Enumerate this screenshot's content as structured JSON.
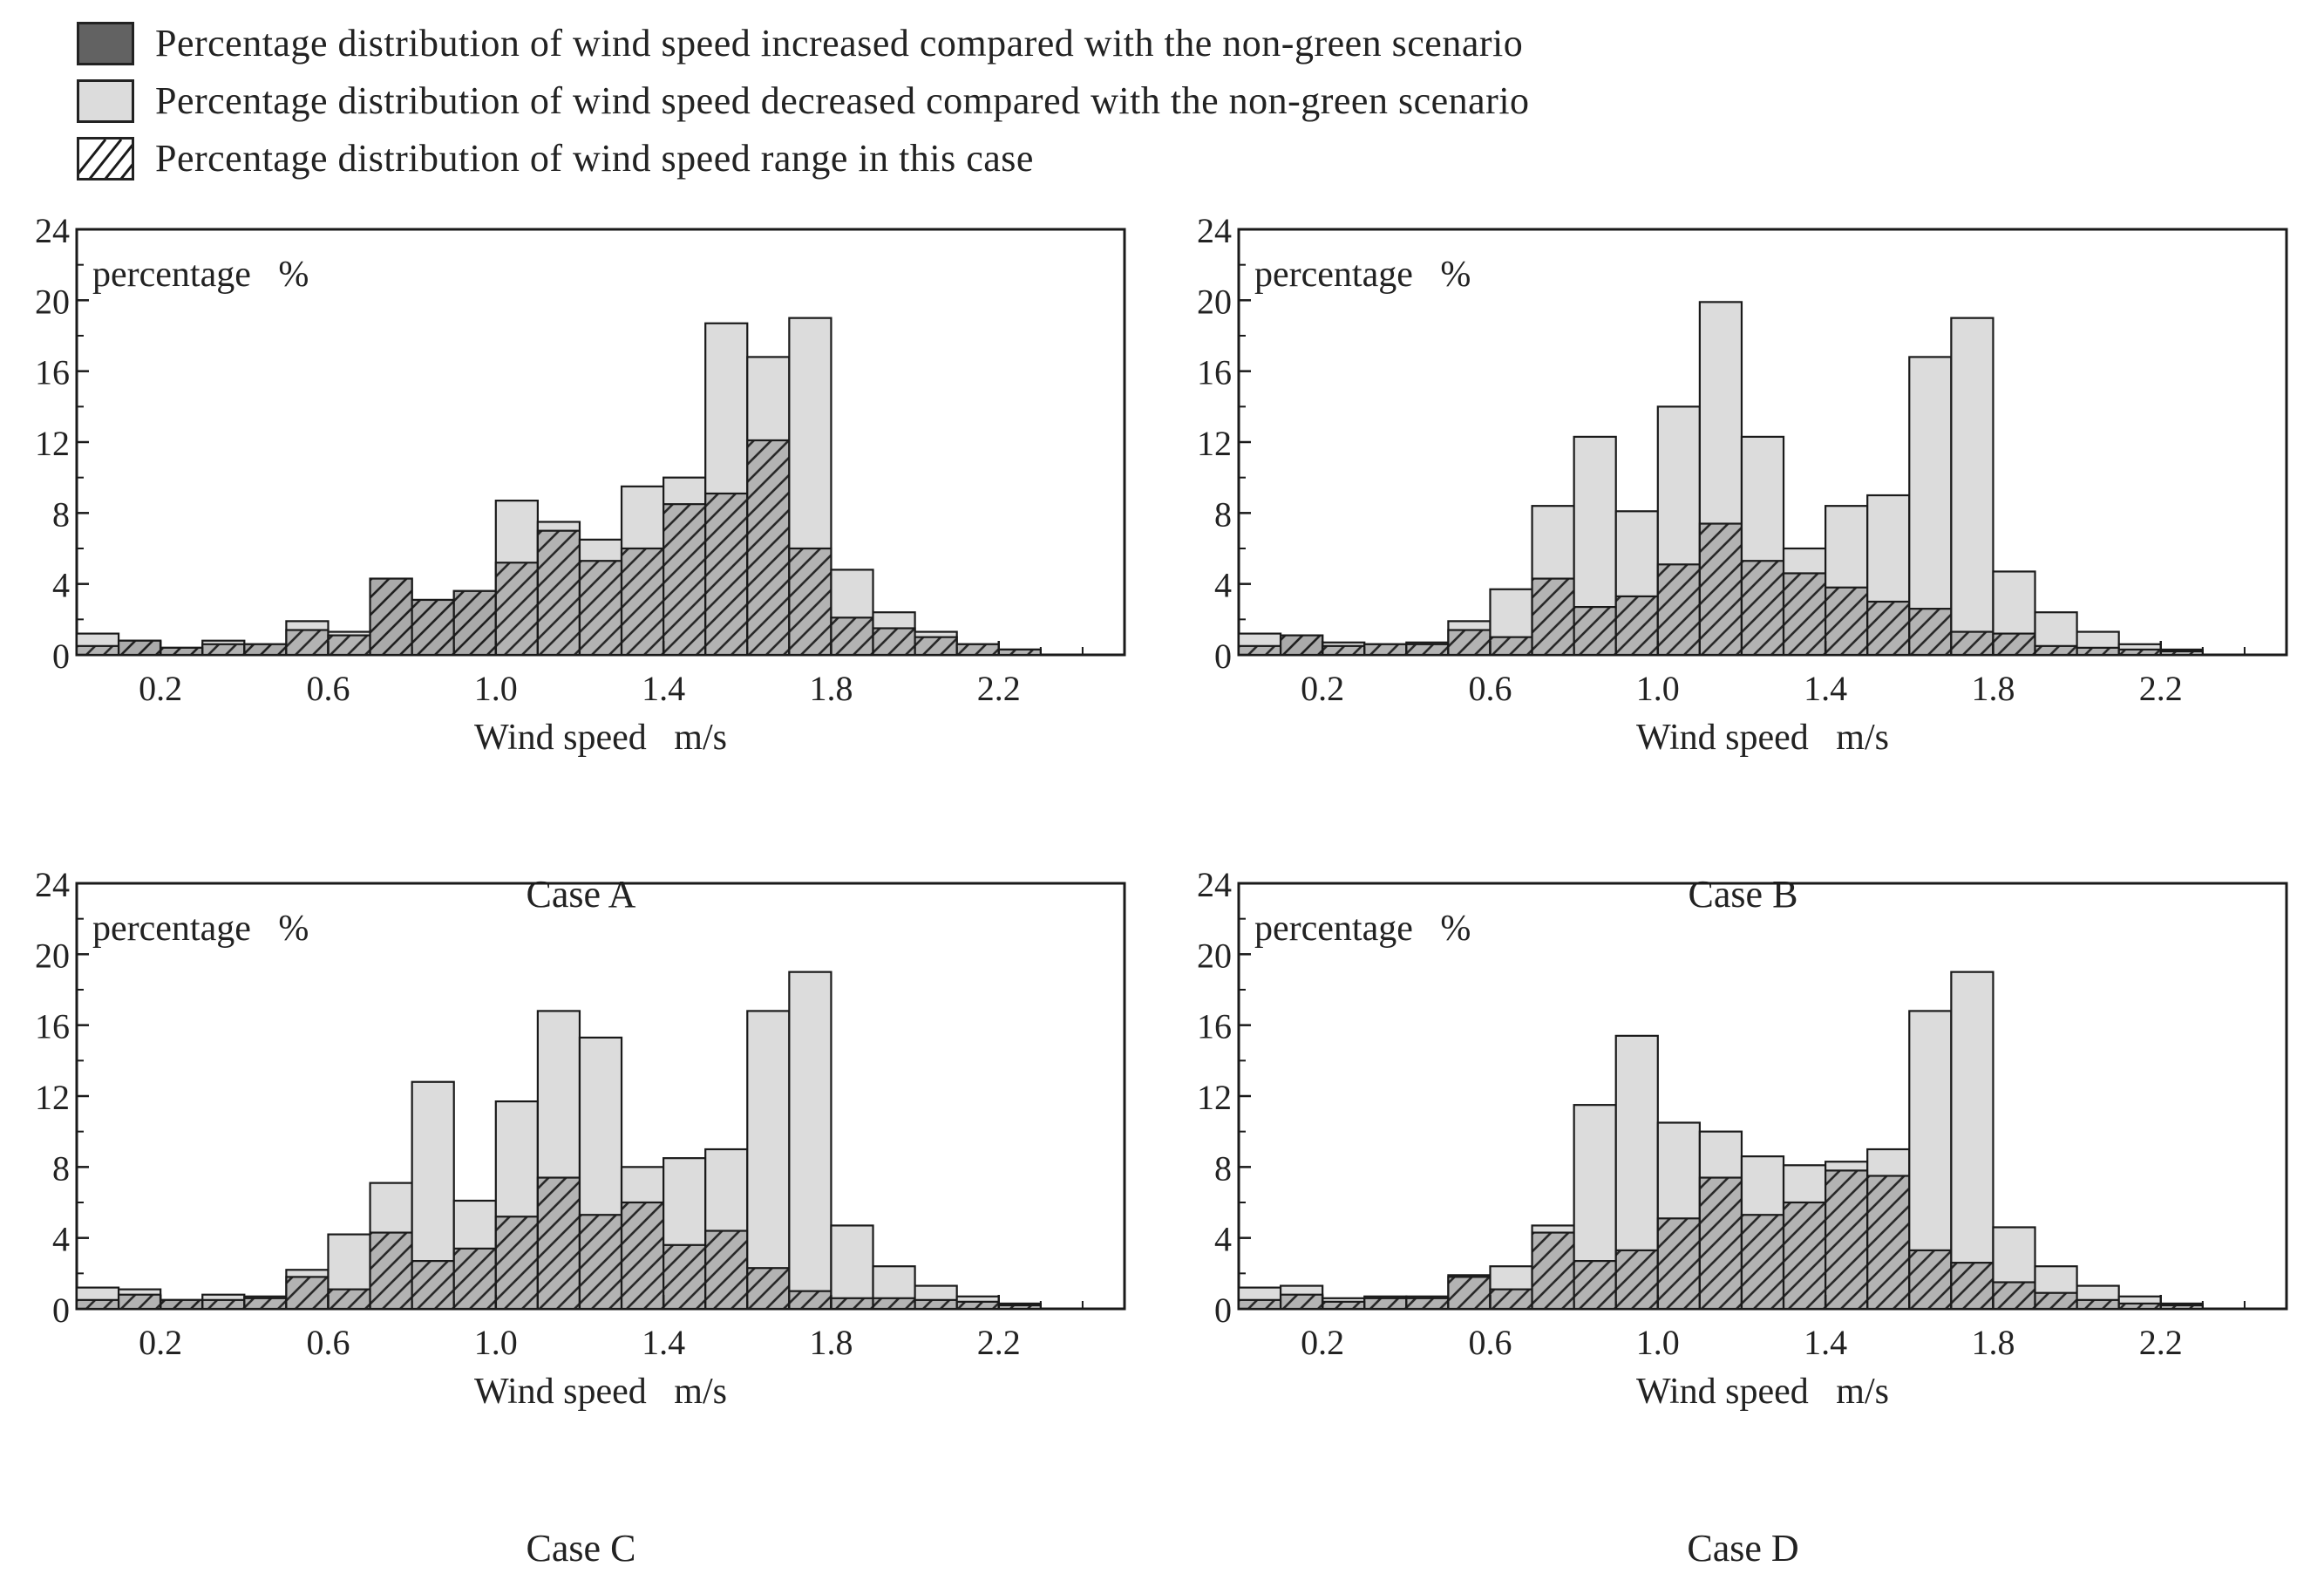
{
  "colors": {
    "increase": "#626262",
    "decrease": "#dcdcdc",
    "hatch_bg": "#b0b0b0",
    "hatch_line": "#1a1a1a",
    "stroke": "#1a1a1a"
  },
  "legend": [
    {
      "key": "increase",
      "label": "Percentage distribution of wind speed increased compared with the non-green scenario"
    },
    {
      "key": "decrease",
      "label": "Percentage distribution of wind speed decreased compared with the non-green scenario"
    },
    {
      "key": "range",
      "label": "Percentage distribution of wind speed range in this case"
    }
  ],
  "chart_data": [
    {
      "type": "bar",
      "case_label": "Case A",
      "ylabel": "percentage   %",
      "xlabel": "Wind speed   m/s",
      "x_domain": [
        0,
        2.5
      ],
      "bin_width": 0.1,
      "ylim": [
        0,
        24
      ],
      "yticks": [
        0,
        4,
        8,
        12,
        16,
        20,
        24
      ],
      "xticks": [
        0.2,
        0.6,
        1.0,
        1.4,
        1.8,
        2.2
      ],
      "bins": [
        0.05,
        0.15,
        0.25,
        0.35,
        0.45,
        0.55,
        0.65,
        0.75,
        0.85,
        0.95,
        1.05,
        1.15,
        1.25,
        1.35,
        1.45,
        1.55,
        1.65,
        1.75,
        1.85,
        1.95,
        2.05,
        2.15,
        2.25,
        2.35,
        2.45
      ],
      "series": [
        {
          "name": "this case",
          "values": [
            0.5,
            0.8,
            0.4,
            0.6,
            0.6,
            1.4,
            1.1,
            4.3,
            3.1,
            3.6,
            5.2,
            7.0,
            5.3,
            6.0,
            8.5,
            9.1,
            12.1,
            6.0,
            2.1,
            1.5,
            1.0,
            0.6,
            0.3,
            0,
            0
          ]
        },
        {
          "name": "non-green",
          "values": [
            1.2,
            0.6,
            0.3,
            0.8,
            0.5,
            1.9,
            1.3,
            4.2,
            2.8,
            3.3,
            8.7,
            7.5,
            6.5,
            9.5,
            10.0,
            18.7,
            16.8,
            19.0,
            4.8,
            2.4,
            1.3,
            0.6,
            0.3,
            0,
            0
          ]
        }
      ]
    },
    {
      "type": "bar",
      "case_label": "Case B",
      "ylabel": "percentage   %",
      "xlabel": "Wind speed   m/s",
      "x_domain": [
        0,
        2.5
      ],
      "bin_width": 0.1,
      "ylim": [
        0,
        24
      ],
      "yticks": [
        0,
        4,
        8,
        12,
        16,
        20,
        24
      ],
      "xticks": [
        0.2,
        0.6,
        1.0,
        1.4,
        1.8,
        2.2
      ],
      "bins": [
        0.05,
        0.15,
        0.25,
        0.35,
        0.45,
        0.55,
        0.65,
        0.75,
        0.85,
        0.95,
        1.05,
        1.15,
        1.25,
        1.35,
        1.45,
        1.55,
        1.65,
        1.75,
        1.85,
        1.95,
        2.05,
        2.15,
        2.25,
        2.35,
        2.45
      ],
      "series": [
        {
          "name": "this case",
          "values": [
            0.5,
            1.1,
            0.5,
            0.6,
            0.6,
            1.4,
            1.0,
            4.3,
            2.7,
            3.3,
            5.1,
            7.4,
            5.3,
            4.6,
            3.8,
            3.0,
            2.6,
            1.3,
            1.2,
            0.5,
            0.4,
            0.3,
            0.2,
            0,
            0
          ]
        },
        {
          "name": "non-green",
          "values": [
            1.2,
            0.8,
            0.7,
            0.6,
            0.7,
            1.9,
            3.7,
            8.4,
            12.3,
            8.1,
            14.0,
            19.9,
            12.3,
            6.0,
            8.4,
            9.0,
            16.8,
            19.0,
            4.7,
            2.4,
            1.3,
            0.6,
            0.3,
            0,
            0
          ]
        }
      ]
    },
    {
      "type": "bar",
      "case_label": "Case C",
      "ylabel": "percentage   %",
      "xlabel": "Wind speed   m/s",
      "x_domain": [
        0,
        2.5
      ],
      "bin_width": 0.1,
      "ylim": [
        0,
        24
      ],
      "yticks": [
        0,
        4,
        8,
        12,
        16,
        20,
        24
      ],
      "xticks": [
        0.2,
        0.6,
        1.0,
        1.4,
        1.8,
        2.2
      ],
      "bins": [
        0.05,
        0.15,
        0.25,
        0.35,
        0.45,
        0.55,
        0.65,
        0.75,
        0.85,
        0.95,
        1.05,
        1.15,
        1.25,
        1.35,
        1.45,
        1.55,
        1.65,
        1.75,
        1.85,
        1.95,
        2.05,
        2.15,
        2.25,
        2.35,
        2.45
      ],
      "series": [
        {
          "name": "this case",
          "values": [
            0.5,
            0.8,
            0.5,
            0.5,
            0.6,
            1.8,
            1.1,
            4.3,
            2.7,
            3.4,
            5.2,
            7.4,
            5.3,
            6.0,
            3.6,
            4.4,
            2.3,
            1.0,
            0.6,
            0.6,
            0.5,
            0.4,
            0.2,
            0,
            0
          ]
        },
        {
          "name": "non-green",
          "values": [
            1.2,
            1.1,
            0.4,
            0.8,
            0.7,
            2.2,
            4.2,
            7.1,
            12.8,
            6.1,
            11.7,
            16.8,
            15.3,
            8.0,
            8.5,
            9.0,
            16.8,
            19.0,
            4.7,
            2.4,
            1.3,
            0.7,
            0.3,
            0,
            0
          ]
        }
      ]
    },
    {
      "type": "bar",
      "case_label": "Case D",
      "ylabel": "percentage   %",
      "xlabel": "Wind speed   m/s",
      "x_domain": [
        0,
        2.5
      ],
      "bin_width": 0.1,
      "ylim": [
        0,
        24
      ],
      "yticks": [
        0,
        4,
        8,
        12,
        16,
        20,
        24
      ],
      "xticks": [
        0.2,
        0.6,
        1.0,
        1.4,
        1.8,
        2.2
      ],
      "bins": [
        0.05,
        0.15,
        0.25,
        0.35,
        0.45,
        0.55,
        0.65,
        0.75,
        0.85,
        0.95,
        1.05,
        1.15,
        1.25,
        1.35,
        1.45,
        1.55,
        1.65,
        1.75,
        1.85,
        1.95,
        2.05,
        2.15,
        2.25,
        2.35,
        2.45
      ],
      "series": [
        {
          "name": "this case",
          "values": [
            0.5,
            0.8,
            0.4,
            0.6,
            0.6,
            1.8,
            1.1,
            4.3,
            2.7,
            3.3,
            5.1,
            7.4,
            5.3,
            6.0,
            7.8,
            7.5,
            3.3,
            2.6,
            1.5,
            0.9,
            0.5,
            0.3,
            0.2,
            0,
            0
          ]
        },
        {
          "name": "non-green",
          "values": [
            1.2,
            1.3,
            0.6,
            0.7,
            0.7,
            1.9,
            2.4,
            4.7,
            11.5,
            15.4,
            10.5,
            10.0,
            8.6,
            8.1,
            8.3,
            9.0,
            16.8,
            19.0,
            4.6,
            2.4,
            1.3,
            0.7,
            0.3,
            0,
            0
          ]
        }
      ]
    }
  ]
}
